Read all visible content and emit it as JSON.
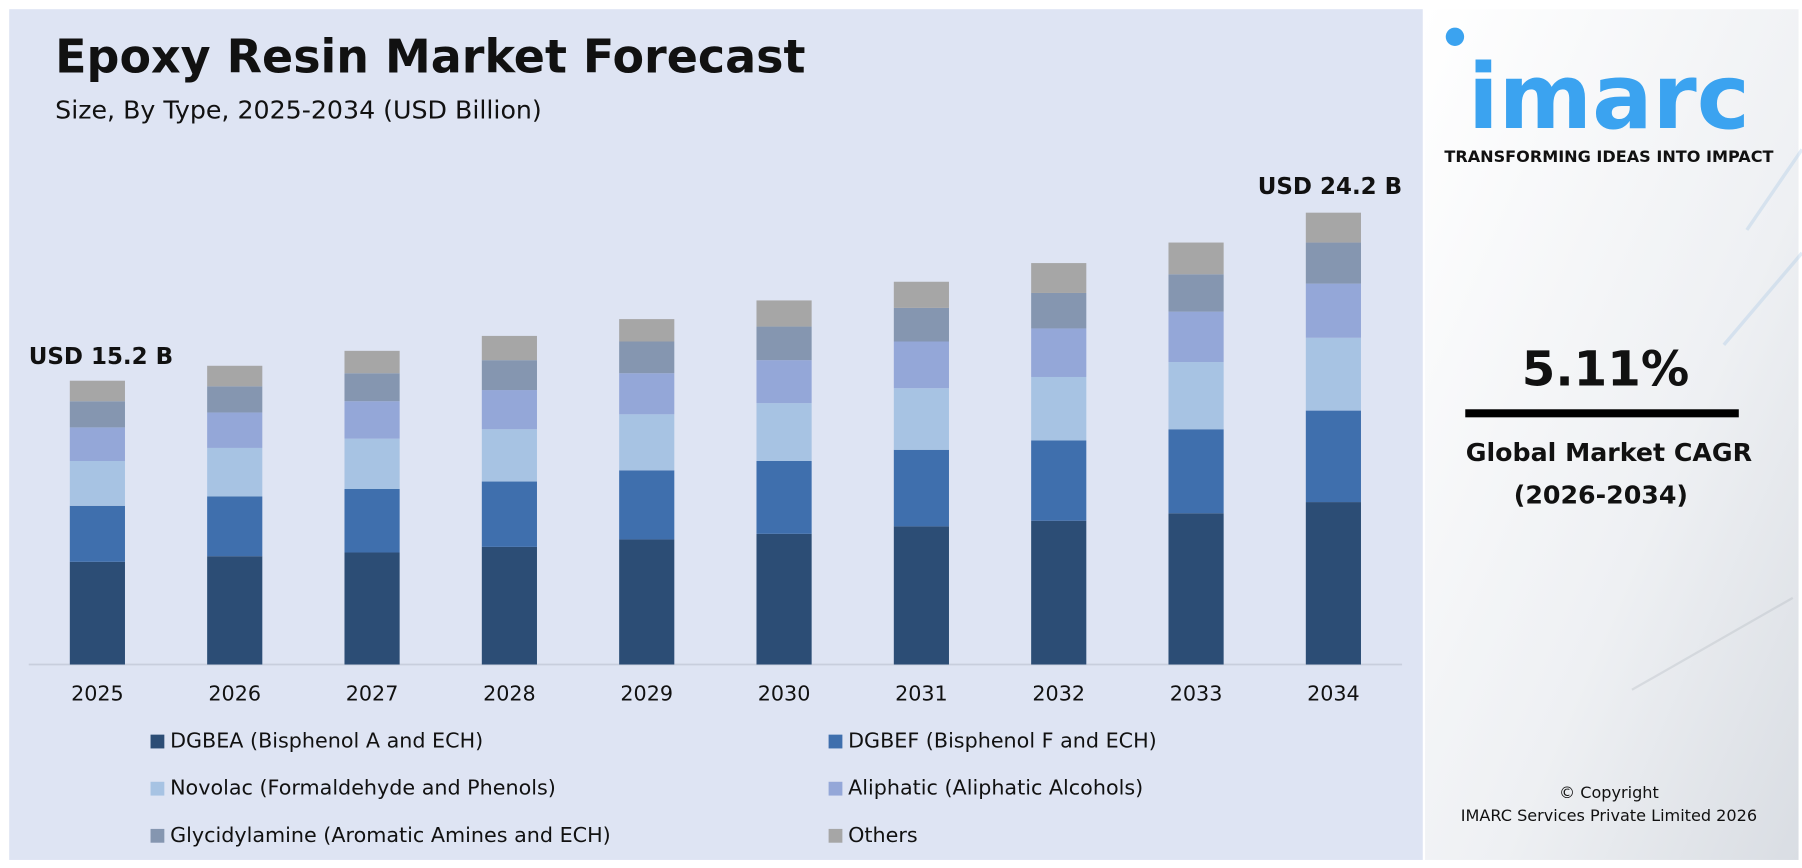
{
  "chart_data": {
    "type": "stacked-bar",
    "title": "Epoxy Resin Market Forecast",
    "subtitle": "Size, By Type, 2025-2034 (USD Billion)",
    "categories": [
      "2025",
      "2026",
      "2027",
      "2028",
      "2029",
      "2030",
      "2031",
      "2032",
      "2033",
      "2034"
    ],
    "series": [
      {
        "name": "DGBEA (Bisphenol A and ECH)",
        "color": "#2c4d75",
        "values": [
          5.5,
          5.8,
          6.0,
          6.3,
          6.7,
          7.0,
          7.4,
          7.7,
          8.1,
          8.7
        ]
      },
      {
        "name": "DGBEF (Bisphenol F and ECH)",
        "color": "#3f6fad",
        "values": [
          3.0,
          3.2,
          3.4,
          3.5,
          3.7,
          3.9,
          4.1,
          4.3,
          4.5,
          4.9
        ]
      },
      {
        "name": "Novolac (Formaldehyde and Phenols)",
        "color": "#a7c3e3",
        "values": [
          2.4,
          2.6,
          2.7,
          2.8,
          3.0,
          3.1,
          3.3,
          3.4,
          3.6,
          3.9
        ]
      },
      {
        "name": "Aliphatic (Aliphatic Alcohols)",
        "color": "#94a7d8",
        "values": [
          1.8,
          1.9,
          2.0,
          2.1,
          2.2,
          2.3,
          2.5,
          2.6,
          2.7,
          2.9
        ]
      },
      {
        "name": "Glycidylamine (Aromatic Amines and ECH)",
        "color": "#8596b0",
        "values": [
          1.4,
          1.4,
          1.5,
          1.6,
          1.7,
          1.8,
          1.8,
          1.9,
          2.0,
          2.2
        ]
      },
      {
        "name": "Others",
        "color": "#a6a6a6",
        "values": [
          1.1,
          1.1,
          1.2,
          1.3,
          1.2,
          1.4,
          1.4,
          1.6,
          1.7,
          1.6
        ]
      }
    ],
    "ylim": [
      0,
      25
    ],
    "annotations": [
      "USD 15.2 B",
      "USD 24.2 B"
    ]
  },
  "sidebar": {
    "logo": "imarc",
    "tagline": "TRANSFORMING IDEAS INTO IMPACT",
    "cagr": "5.11%",
    "cagr_label": "Global Market CAGR",
    "cagr_period": "(2026-2034)",
    "copyright": "© Copyright",
    "company": "IMARC Services Private Limited 2026"
  }
}
